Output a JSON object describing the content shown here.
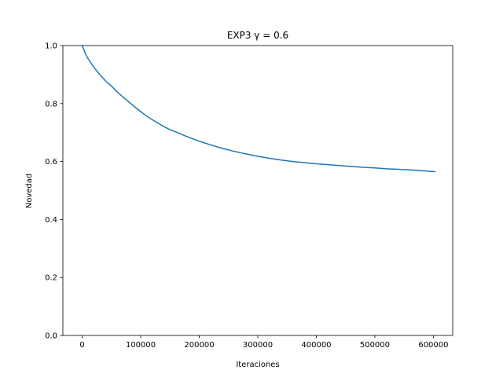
{
  "chart_data": {
    "type": "line",
    "title": "EXP3 γ = 0.6",
    "xlabel": "Iteraciones",
    "ylabel": "Novedad",
    "xlim": [
      -33000,
      633000
    ],
    "ylim": [
      0.0,
      1.0
    ],
    "grid": false,
    "x_ticks": [
      {
        "value": 0,
        "label": "0"
      },
      {
        "value": 100000,
        "label": "100000"
      },
      {
        "value": 200000,
        "label": "200000"
      },
      {
        "value": 300000,
        "label": "300000"
      },
      {
        "value": 400000,
        "label": "400000"
      },
      {
        "value": 500000,
        "label": "500000"
      },
      {
        "value": 600000,
        "label": "600000"
      }
    ],
    "y_ticks": [
      {
        "value": 0.0,
        "label": "0.0"
      },
      {
        "value": 0.2,
        "label": "0.2"
      },
      {
        "value": 0.4,
        "label": "0.4"
      },
      {
        "value": 0.6,
        "label": "0.6"
      },
      {
        "value": 0.8,
        "label": "0.8"
      },
      {
        "value": 1.0,
        "label": "1.0"
      }
    ],
    "series": [
      {
        "color": "#1f77b4",
        "x": [
          0,
          3000,
          6000,
          10000,
          20000,
          30000,
          40000,
          50000,
          60000,
          70000,
          80000,
          90000,
          100000,
          110000,
          120000,
          130000,
          140000,
          150000,
          160000,
          180000,
          200000,
          220000,
          240000,
          260000,
          280000,
          300000,
          320000,
          340000,
          360000,
          380000,
          400000,
          420000,
          440000,
          460000,
          480000,
          500000,
          520000,
          540000,
          560000,
          580000,
          603000
        ],
        "y": [
          1.0,
          0.985,
          0.97,
          0.955,
          0.925,
          0.9,
          0.878,
          0.86,
          0.84,
          0.822,
          0.805,
          0.788,
          0.772,
          0.757,
          0.744,
          0.732,
          0.72,
          0.71,
          0.702,
          0.685,
          0.67,
          0.657,
          0.645,
          0.635,
          0.626,
          0.618,
          0.611,
          0.605,
          0.6,
          0.596,
          0.592,
          0.589,
          0.586,
          0.583,
          0.58,
          0.578,
          0.575,
          0.573,
          0.571,
          0.568,
          0.565
        ]
      }
    ]
  }
}
